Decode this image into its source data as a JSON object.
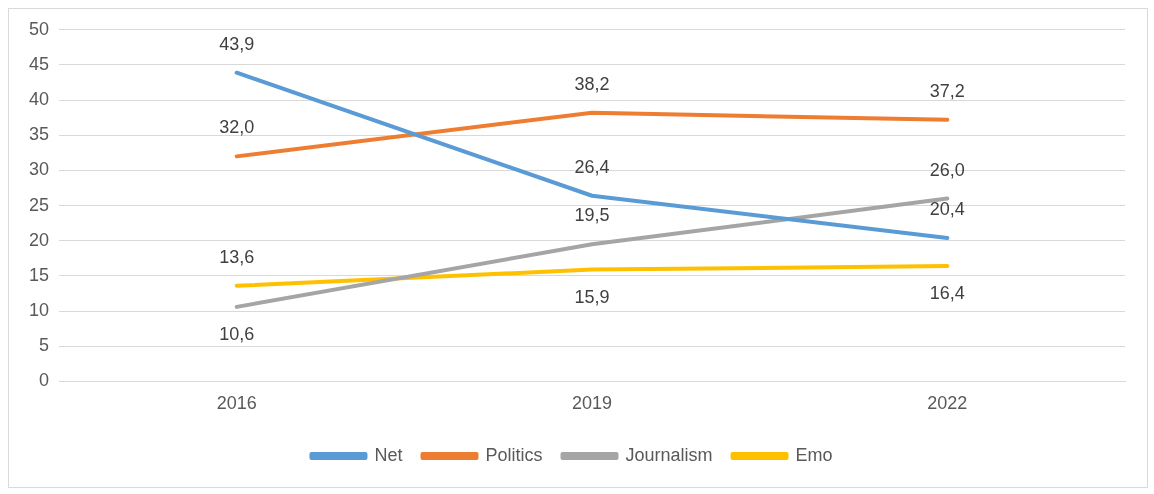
{
  "chart_data": {
    "type": "line",
    "categories": [
      "2016",
      "2019",
      "2022"
    ],
    "series": [
      {
        "name": "Net",
        "color": "#5b9bd5",
        "values": [
          43.9,
          26.4,
          20.4
        ],
        "value_labels": [
          "43,9",
          "26,4",
          "20,4"
        ]
      },
      {
        "name": "Politics",
        "color": "#ed7d31",
        "values": [
          32.0,
          38.2,
          37.2
        ],
        "value_labels": [
          "32,0",
          "38,2",
          "37,2"
        ]
      },
      {
        "name": "Journalism",
        "color": "#a5a5a5",
        "values": [
          10.6,
          19.5,
          26.0
        ],
        "value_labels": [
          "10,6",
          "19,5",
          "26,0"
        ]
      },
      {
        "name": "Emo",
        "color": "#ffc000",
        "values": [
          13.6,
          15.9,
          16.4
        ],
        "value_labels": [
          "13,6",
          "15,9",
          "16,4"
        ]
      }
    ],
    "ylim": [
      0,
      50
    ],
    "yticks": [
      0,
      5,
      10,
      15,
      20,
      25,
      30,
      35,
      40,
      45,
      50
    ],
    "grid": "y",
    "legend": "bottom",
    "marker": "none",
    "line_style": "solid"
  }
}
